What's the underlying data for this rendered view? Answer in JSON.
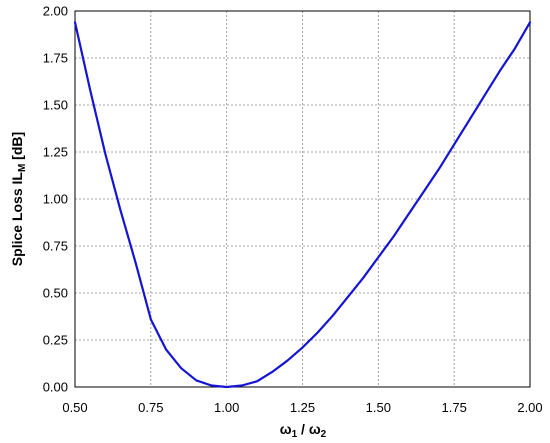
{
  "chart_data": {
    "type": "line",
    "xlabel": {
      "main": "ω",
      "sub1": "1",
      "sep": " / ω",
      "sub2": "2"
    },
    "ylabel": {
      "main": "Splice Loss IL",
      "sub": "M",
      "tail": " [dB]"
    },
    "xlim": [
      0.5,
      2.0
    ],
    "ylim": [
      0.0,
      2.0
    ],
    "x_ticks": [
      "0.50",
      "0.75",
      "1.00",
      "1.25",
      "1.50",
      "1.75",
      "2.00"
    ],
    "y_ticks": [
      "0.00",
      "0.25",
      "0.50",
      "0.75",
      "1.00",
      "1.25",
      "1.50",
      "1.75",
      "2.00"
    ],
    "grid": true,
    "series": [
      {
        "color": "#1414d2",
        "points": [
          [
            0.5,
            1.94
          ],
          [
            0.55,
            1.58
          ],
          [
            0.6,
            1.24
          ],
          [
            0.65,
            0.94
          ],
          [
            0.7,
            0.66
          ],
          [
            0.75,
            0.36
          ],
          [
            0.8,
            0.2
          ],
          [
            0.85,
            0.1
          ],
          [
            0.9,
            0.035
          ],
          [
            0.95,
            0.008
          ],
          [
            1.0,
            0.0
          ],
          [
            1.05,
            0.008
          ],
          [
            1.1,
            0.03
          ],
          [
            1.15,
            0.08
          ],
          [
            1.2,
            0.14
          ],
          [
            1.25,
            0.21
          ],
          [
            1.3,
            0.29
          ],
          [
            1.35,
            0.38
          ],
          [
            1.4,
            0.48
          ],
          [
            1.45,
            0.58
          ],
          [
            1.5,
            0.69
          ],
          [
            1.55,
            0.8
          ],
          [
            1.6,
            0.92
          ],
          [
            1.65,
            1.04
          ],
          [
            1.7,
            1.16
          ],
          [
            1.75,
            1.29
          ],
          [
            1.8,
            1.42
          ],
          [
            1.85,
            1.55
          ],
          [
            1.9,
            1.68
          ],
          [
            1.95,
            1.8
          ],
          [
            2.0,
            1.94
          ]
        ]
      }
    ]
  }
}
